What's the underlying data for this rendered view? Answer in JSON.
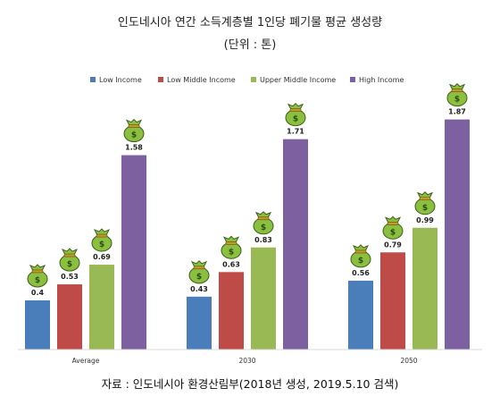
{
  "chart_data": {
    "type": "bar",
    "title": "인도네시아 연간 소득계층별 1인당 폐기물 평균 생성량",
    "subtitle": "(단위 : 톤)",
    "categories": [
      "Average",
      "2030",
      "2050"
    ],
    "series": [
      {
        "name": "Low Income",
        "color": "#4a7ebb",
        "values": [
          0.4,
          0.43,
          0.56
        ]
      },
      {
        "name": "Low Middle Income",
        "color": "#be4b48",
        "values": [
          0.53,
          0.63,
          0.79
        ]
      },
      {
        "name": "Upper Middle Income",
        "color": "#98b954",
        "values": [
          0.69,
          0.83,
          0.99
        ]
      },
      {
        "name": "High Income",
        "color": "#7d60a0",
        "values": [
          1.58,
          1.71,
          1.87
        ]
      }
    ],
    "ylim": [
      0,
      2.1
    ],
    "grid": false,
    "legend": "top",
    "source": "자료 : 인도네시아 환경산림부(2018년 생성, 2019.5.10 검색)",
    "bar_icon": "money-bag-icon"
  }
}
